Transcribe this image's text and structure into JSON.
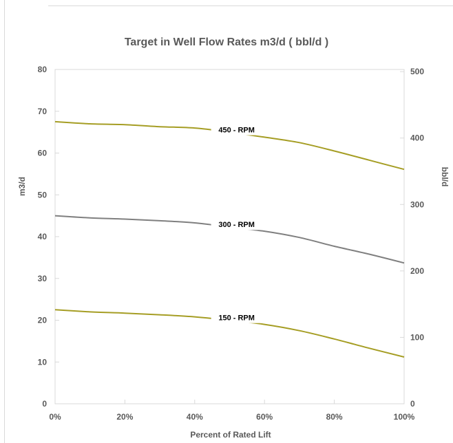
{
  "chart_data": {
    "type": "line",
    "title": "Target in Well Flow Rates m3/d  ( bbl/d )",
    "xlabel": "Percent of Rated Lift",
    "ylabel": "m3/d",
    "y2label": "bbl/d",
    "xlim": [
      0,
      100
    ],
    "ylim": [
      0,
      80
    ],
    "y2lim": [
      0,
      503.2
    ],
    "x_ticks": [
      "0%",
      "20%",
      "40%",
      "60%",
      "80%",
      "100%"
    ],
    "y_ticks": [
      "0",
      "10",
      "20",
      "30",
      "40",
      "50",
      "60",
      "70",
      "80"
    ],
    "y2_ticks": [
      "0",
      "100",
      "200",
      "300",
      "400",
      "500"
    ],
    "grid": false,
    "series": [
      {
        "name": "450 - RPM",
        "color": "#a59d23",
        "x": [
          0,
          10,
          20,
          30,
          40,
          50,
          60,
          70,
          80,
          90,
          100
        ],
        "y": [
          67.5,
          67.0,
          66.8,
          66.3,
          66.0,
          65.0,
          63.8,
          62.5,
          60.5,
          58.3,
          56.1
        ]
      },
      {
        "name": "300 - RPM",
        "color": "#7f7f7f",
        "x": [
          0,
          10,
          20,
          30,
          40,
          50,
          60,
          70,
          80,
          90,
          100
        ],
        "y": [
          45.0,
          44.5,
          44.2,
          43.8,
          43.3,
          42.3,
          41.3,
          39.8,
          37.7,
          35.8,
          33.7
        ]
      },
      {
        "name": "150 - RPM",
        "color": "#a59d23",
        "x": [
          0,
          10,
          20,
          30,
          40,
          50,
          60,
          70,
          80,
          90,
          100
        ],
        "y": [
          22.5,
          22.0,
          21.7,
          21.3,
          20.8,
          20.0,
          19.0,
          17.5,
          15.5,
          13.3,
          11.2
        ]
      }
    ],
    "series_labels_at_x": [
      52,
      52,
      52
    ]
  }
}
